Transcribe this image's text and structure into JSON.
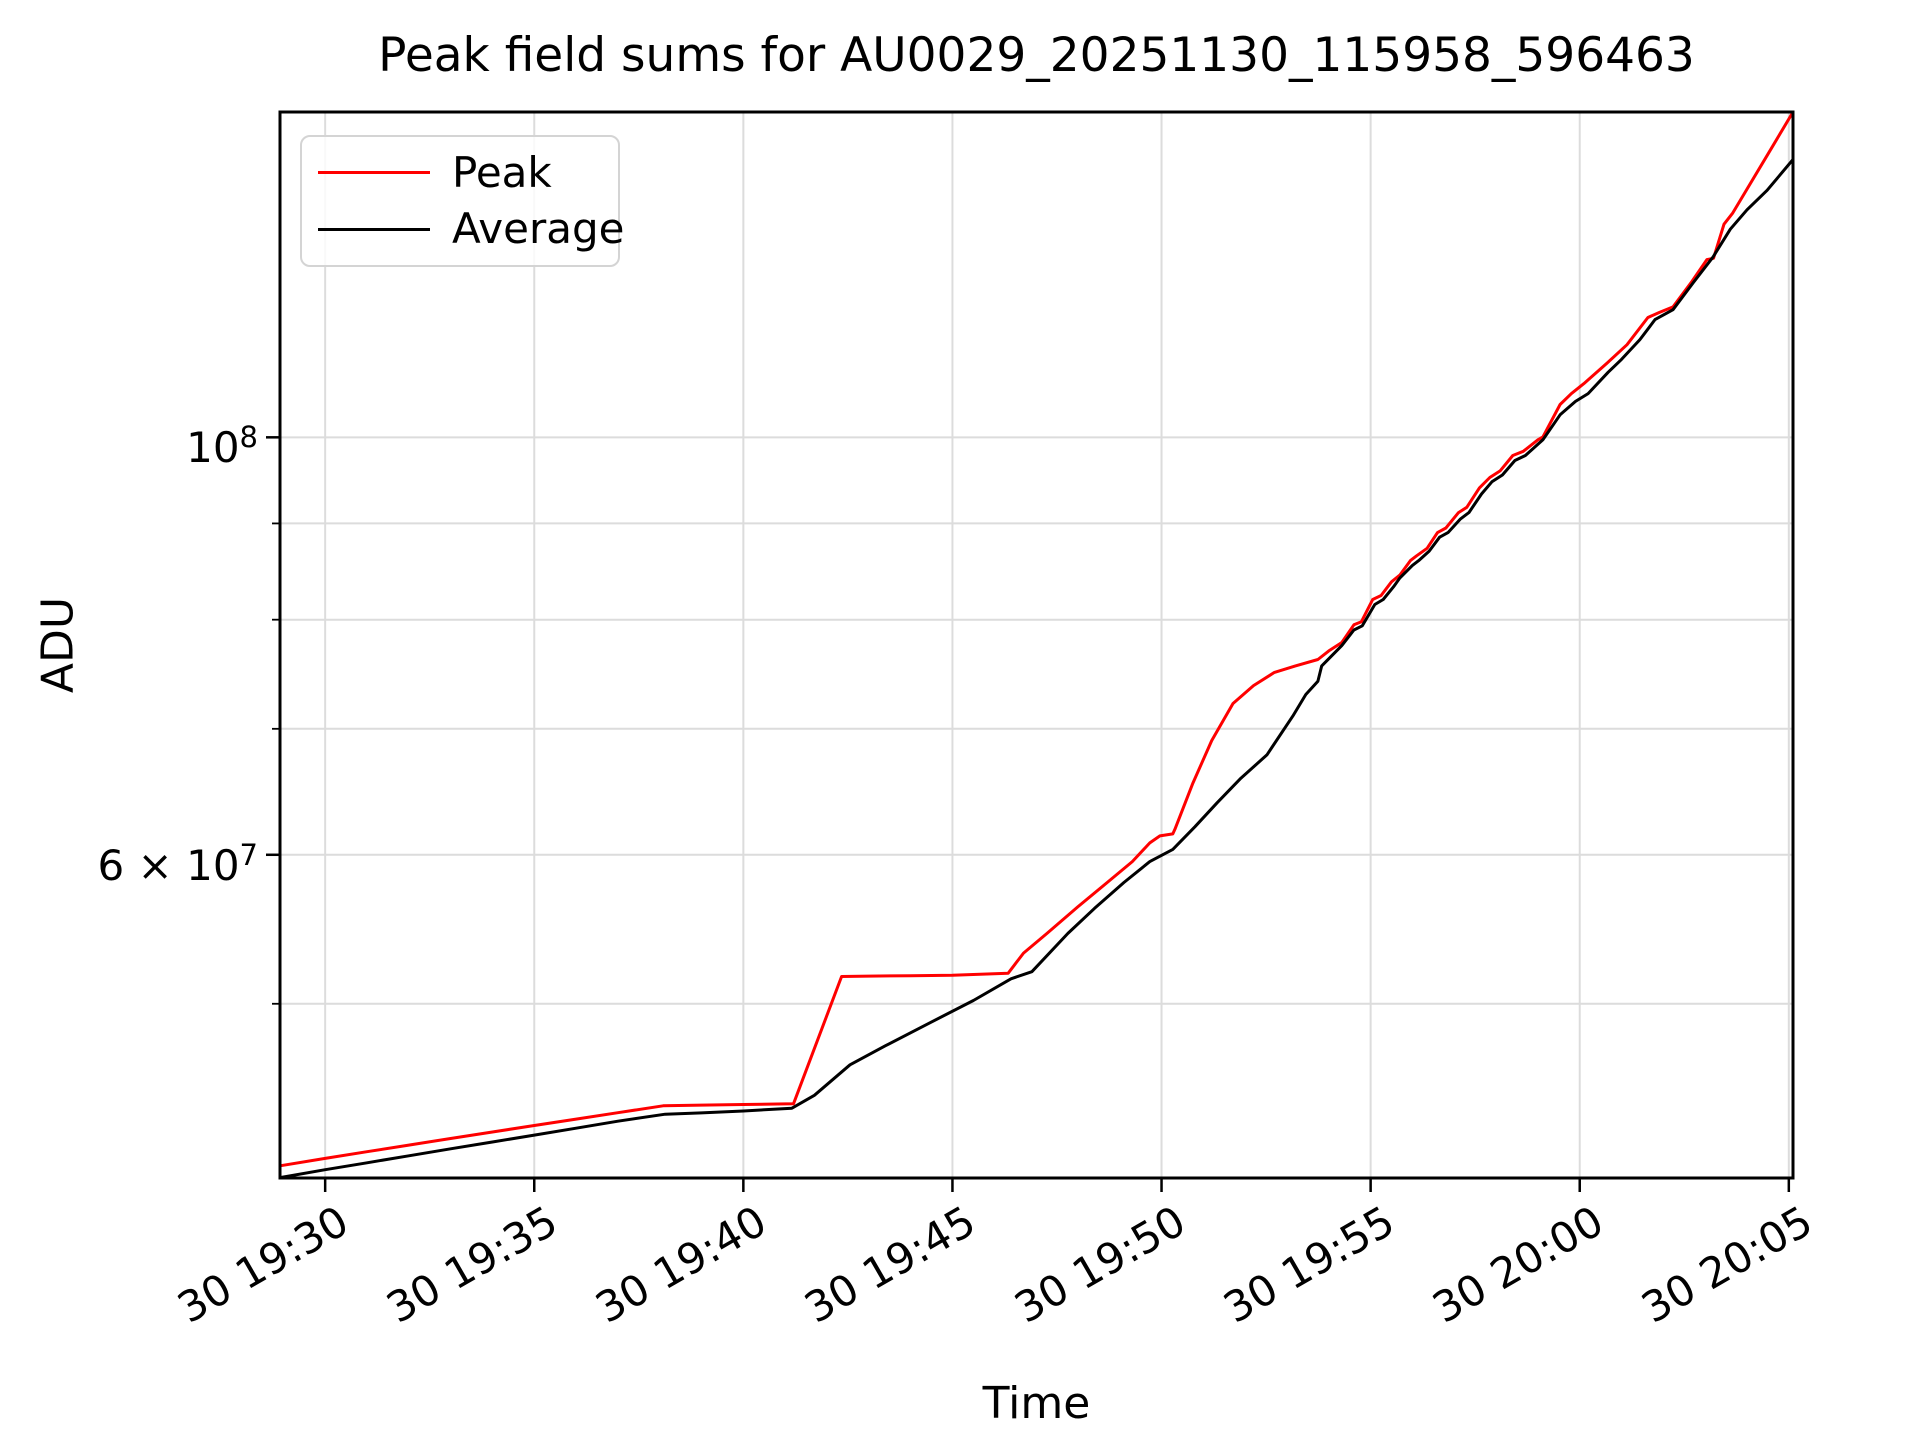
{
  "chart_data": {
    "type": "line",
    "title": "Peak field sums for AU0029_20251130_115958_596463",
    "xlabel": "Time",
    "ylabel": "ADU",
    "x_axis": {
      "unit": "minutes after 19:30 (day 30)",
      "xlim_minutes": [
        -1.08,
        35.1
      ],
      "tick_minutes": [
        0,
        5,
        10,
        15,
        20,
        25,
        30,
        35
      ],
      "tick_labels": [
        "30 19:30",
        "30 19:35",
        "30 19:40",
        "30 19:45",
        "30 19:50",
        "30 19:55",
        "30 20:00",
        "30 20:05"
      ]
    },
    "y_axis": {
      "scale": "log",
      "y_scale": 10000000,
      "ylim": [
        40400000,
        148900000
      ],
      "major_ticks": [
        {
          "value": 100000000,
          "label_prefix": "",
          "label_mantissa": "10",
          "label_exponent": "8"
        },
        {
          "value": 60000000,
          "label_prefix": "6 × ",
          "label_mantissa": "10",
          "label_exponent": "7"
        }
      ],
      "minor_tick_values": [
        50000000,
        70000000,
        80000000,
        90000000
      ],
      "grid_values": [
        50000000,
        60000000,
        70000000,
        80000000,
        90000000,
        100000000
      ]
    },
    "grid": {
      "show": true,
      "color": "#dcdcdc"
    },
    "legend": {
      "position": "upper left"
    },
    "series": [
      {
        "name": "Peak",
        "color": "#ff0000",
        "x_minutes": [
          -1.08,
          0,
          1,
          2,
          3,
          4,
          5,
          6,
          7,
          8.08,
          9,
          10,
          11.2,
          12.35,
          13,
          14,
          15,
          16.33,
          16.7,
          17.26,
          18,
          18.7,
          19.3,
          19.72,
          19.96,
          20.27,
          20.32,
          20.75,
          21.2,
          21.71,
          22.2,
          22.7,
          23.2,
          23.74,
          24,
          24.31,
          24.6,
          24.78,
          25.05,
          25.25,
          25.5,
          25.7,
          25.95,
          26.1,
          26.35,
          26.6,
          26.8,
          27.1,
          27.3,
          27.6,
          27.85,
          28.1,
          28.4,
          28.65,
          29,
          29.12,
          29.53,
          29.8,
          30.1,
          30.65,
          31.13,
          31.63,
          31.9,
          32.23,
          32.68,
          33.04,
          33.2,
          33.45,
          33.66,
          34,
          34.5,
          35.1
        ],
        "y_adu_1e7": [
          4.101,
          4.138,
          4.172,
          4.206,
          4.24,
          4.274,
          4.308,
          4.342,
          4.376,
          4.413,
          4.417,
          4.42,
          4.424,
          5.17,
          5.172,
          5.175,
          5.178,
          5.19,
          5.32,
          5.45,
          5.63,
          5.8,
          5.95,
          6.088,
          6.14,
          6.155,
          6.19,
          6.55,
          6.9,
          7.22,
          7.38,
          7.5,
          7.56,
          7.62,
          7.7,
          7.78,
          7.95,
          7.98,
          8.2,
          8.24,
          8.38,
          8.45,
          8.6,
          8.65,
          8.73,
          8.9,
          8.95,
          9.12,
          9.18,
          9.4,
          9.52,
          9.6,
          9.78,
          9.83,
          9.97,
          10.005,
          10.41,
          10.55,
          10.68,
          10.95,
          11.2,
          11.58,
          11.65,
          11.73,
          12.1,
          12.43,
          12.45,
          12.98,
          13.16,
          13.55,
          14.14,
          14.89
        ]
      },
      {
        "name": "Average",
        "color": "#000000",
        "x_minutes": [
          -1.08,
          0,
          1,
          2,
          3,
          4,
          5,
          6,
          7,
          8.13,
          9,
          10,
          11.16,
          11.7,
          12.55,
          13.4,
          14.46,
          15.5,
          16.4,
          16.9,
          17.76,
          18.4,
          19.1,
          19.72,
          20.27,
          20.8,
          21.33,
          21.9,
          22.52,
          23.14,
          23.45,
          23.74,
          23.83,
          24.31,
          24.6,
          24.8,
          25.1,
          25.3,
          25.55,
          25.7,
          26,
          26.15,
          26.4,
          26.65,
          26.85,
          27.15,
          27.35,
          27.65,
          27.9,
          28.15,
          28.45,
          28.7,
          29.12,
          29.53,
          29.9,
          30.2,
          30.68,
          31,
          31.44,
          31.8,
          32.23,
          32.71,
          33.19,
          33.6,
          34,
          34.48,
          35.1
        ],
        "y_adu_1e7": [
          4.042,
          4.081,
          4.116,
          4.151,
          4.187,
          4.222,
          4.258,
          4.294,
          4.331,
          4.368,
          4.375,
          4.385,
          4.4,
          4.47,
          4.64,
          4.75,
          4.885,
          5.02,
          5.155,
          5.2,
          5.45,
          5.62,
          5.8,
          5.95,
          6.04,
          6.21,
          6.395,
          6.59,
          6.78,
          7.11,
          7.3,
          7.42,
          7.56,
          7.75,
          7.9,
          7.94,
          8.15,
          8.2,
          8.33,
          8.42,
          8.55,
          8.6,
          8.7,
          8.85,
          8.9,
          9.05,
          9.12,
          9.33,
          9.47,
          9.55,
          9.72,
          9.78,
          9.97,
          10.28,
          10.45,
          10.55,
          10.83,
          11,
          11.27,
          11.55,
          11.69,
          12.08,
          12.47,
          12.9,
          13.21,
          13.53,
          14.05
        ]
      }
    ]
  }
}
